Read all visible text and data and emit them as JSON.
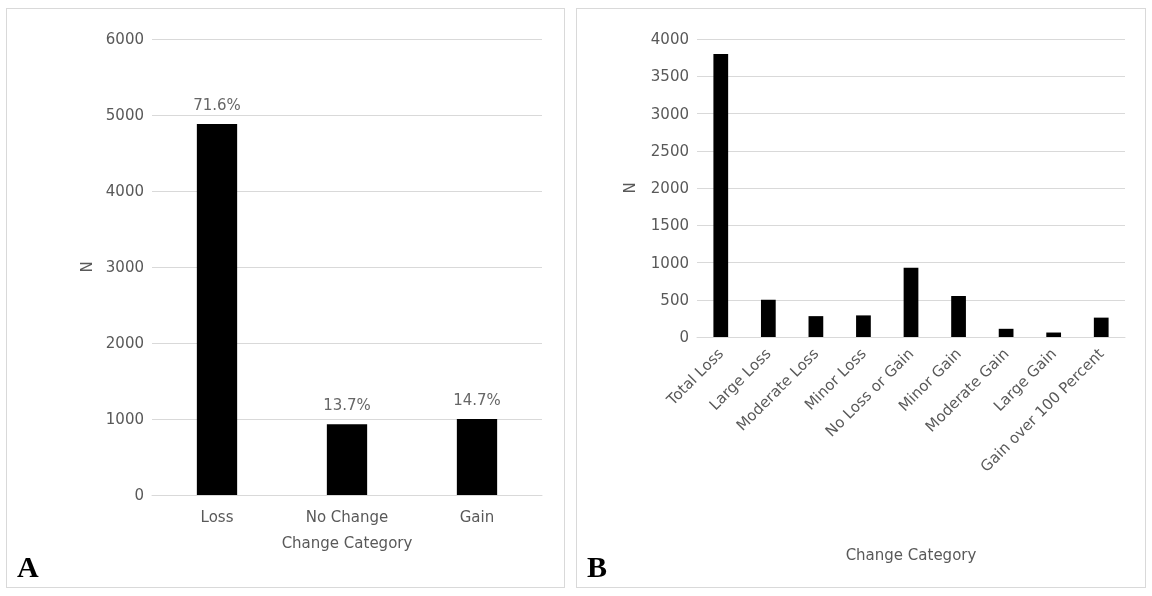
{
  "chart_data": [
    {
      "type": "bar",
      "xlabel": "Change Category",
      "ylabel": "N",
      "categories": [
        "Loss",
        "No Change",
        "Gain"
      ],
      "values": [
        4880,
        930,
        1000
      ],
      "color": "#000000",
      "ylim": [
        0,
        6000
      ],
      "yticks": [
        0,
        1000,
        2000,
        3000,
        4000,
        5000,
        6000
      ],
      "grid": "y",
      "annotations": [
        "A",
        {
          "text": "71.6%",
          "x": "Loss",
          "y": 4880
        },
        {
          "text": "13.7%",
          "x": "No Change",
          "y": 930
        },
        {
          "text": "14.7%",
          "x": "Gain",
          "y": 1000
        }
      ]
    },
    {
      "type": "bar",
      "xlabel": "Change Category",
      "ylabel": "N",
      "categories": [
        "Total Loss",
        "Large Loss",
        "Moderate Loss",
        "Minor Loss",
        "No Loss or Gain",
        "Minor Gain",
        "Moderate Gain",
        "Large Gain",
        "Gain over 100 Percent"
      ],
      "values": [
        3800,
        500,
        280,
        290,
        930,
        550,
        110,
        60,
        260
      ],
      "color": "#000000",
      "ylim": [
        0,
        4000
      ],
      "yticks": [
        0,
        500,
        1000,
        1500,
        2000,
        2500,
        3000,
        3500,
        4000
      ],
      "grid": "y",
      "annotations": [
        "B"
      ]
    }
  ]
}
